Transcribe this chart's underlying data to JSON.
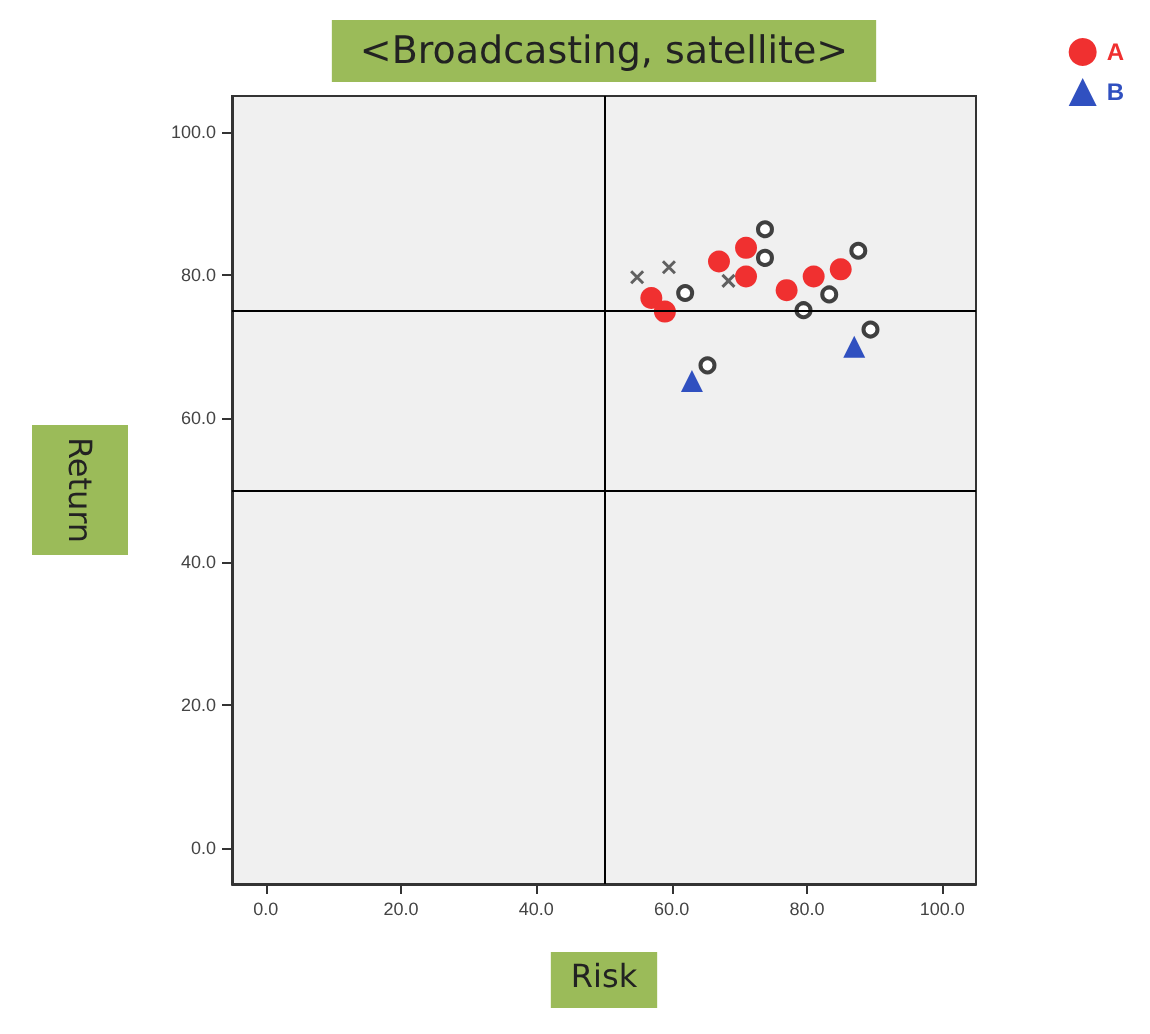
{
  "chart_data": {
    "type": "scatter",
    "title": "<Broadcasting, satellite>",
    "xlabel": "Risk",
    "ylabel": "Return",
    "xlim": [
      -5,
      105
    ],
    "ylim": [
      -5,
      105
    ],
    "xticks": [
      {
        "value": 0,
        "label": "0.0"
      },
      {
        "value": 20,
        "label": "20.0"
      },
      {
        "value": 40,
        "label": "40.0"
      },
      {
        "value": 60,
        "label": "60.0"
      },
      {
        "value": 80,
        "label": "80.0"
      },
      {
        "value": 100,
        "label": "100.0"
      }
    ],
    "yticks": [
      {
        "value": 0,
        "label": "0.0"
      },
      {
        "value": 20,
        "label": "20.0"
      },
      {
        "value": 40,
        "label": "40.0"
      },
      {
        "value": 60,
        "label": "60.0"
      },
      {
        "value": 80,
        "label": "80.0"
      },
      {
        "value": 100,
        "label": "100.0"
      }
    ],
    "grid": false,
    "legend": "top right",
    "ref_lines": [
      {
        "axis": "x",
        "value": 50,
        "color": "#000000"
      },
      {
        "axis": "y",
        "value": 75,
        "color": "#000000"
      },
      {
        "axis": "y",
        "value": 50,
        "color": "#000000"
      }
    ],
    "series": [
      {
        "name": "A",
        "color": "#f03030",
        "marker": "circle",
        "x": [
          57,
          59,
          67,
          71,
          71,
          77,
          81,
          85
        ],
        "values": [
          76.8,
          74.9,
          81.9,
          83.8,
          79.8,
          77.9,
          79.8,
          80.8
        ]
      },
      {
        "name": "B",
        "color": "#3050c0",
        "marker": "triangle",
        "x": [
          63,
          87
        ],
        "values": [
          65.2,
          70
        ]
      },
      {
        "color": "#404040",
        "marker": "circle",
        "x": [
          62,
          73.8,
          73.8,
          87.6,
          83.3,
          79.5,
          89.4,
          65.3
        ],
        "values": [
          77.5,
          86.4,
          82.4,
          83.4,
          77.3,
          75.1,
          72.4,
          67.4
        ]
      },
      {
        "color": "#606060",
        "marker": "cross",
        "x": [
          54.9,
          59.6,
          68.4
        ],
        "values": [
          79.7,
          81.1,
          79.2
        ]
      }
    ]
  }
}
